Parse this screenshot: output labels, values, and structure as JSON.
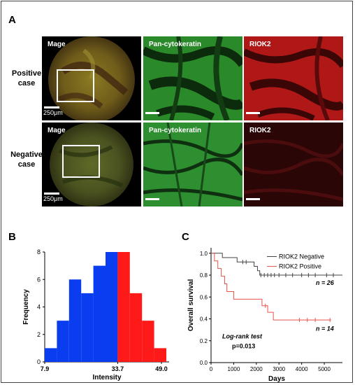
{
  "panel_a": {
    "letter": "A",
    "rows": [
      {
        "label_line1": "Positive",
        "label_line2": "case",
        "tiles": [
          "Mage",
          "Pan-cytokeratin",
          "RIOK2"
        ],
        "scale_text": "250μm"
      },
      {
        "label_line1": "Negative",
        "label_line2": "case",
        "tiles": [
          "Mage",
          "Pan-cytokeratin",
          "RIOK2"
        ],
        "scale_text": "250μm"
      }
    ]
  },
  "panel_b": {
    "letter": "B"
  },
  "panel_c": {
    "letter": "C"
  },
  "colors": {
    "blue": "#0a3cf0",
    "red": "#ff1a1a",
    "green": "#39b54a",
    "km_red": "#e8534a",
    "km_black": "#444444"
  },
  "chart_data": [
    {
      "type": "bar",
      "xlabel": "Intensity",
      "ylabel": "Frequency",
      "x_tick_labels": [
        "7.9",
        "33.7",
        "49.0"
      ],
      "ylim": [
        0,
        8
      ],
      "y_ticks": [
        0,
        2,
        4,
        6,
        8
      ],
      "bins": [
        {
          "group": "negative",
          "value": 1
        },
        {
          "group": "negative",
          "value": 3
        },
        {
          "group": "negative",
          "value": 6
        },
        {
          "group": "negative",
          "value": 5
        },
        {
          "group": "negative",
          "value": 7
        },
        {
          "group": "negative",
          "value": 8
        },
        {
          "group": "positive",
          "value": 8
        },
        {
          "group": "positive",
          "value": 5
        },
        {
          "group": "positive",
          "value": 3
        },
        {
          "group": "positive",
          "value": 1
        }
      ]
    },
    {
      "type": "line",
      "xlabel": "Days",
      "ylabel": "Overall survival",
      "xlim": [
        0,
        5800
      ],
      "ylim": [
        0,
        1.05
      ],
      "x_ticks": [
        0,
        1000,
        2000,
        3000,
        4000,
        5000
      ],
      "y_ticks": [
        "0.0",
        "0.2",
        "0.4",
        "0.6",
        "0.8",
        "1.0"
      ],
      "series": [
        {
          "name": "RIOK2 Negative",
          "n_label": "n = 26",
          "steps": [
            [
              0,
              1.0
            ],
            [
              500,
              0.96
            ],
            [
              1150,
              0.92
            ],
            [
              1900,
              0.88
            ],
            [
              2050,
              0.84
            ],
            [
              2150,
              0.8
            ],
            [
              5800,
              0.8
            ]
          ],
          "censors": [
            1400,
            1550,
            2200,
            2350,
            2500,
            2650,
            2800,
            3000,
            3300,
            3600,
            4000,
            4300,
            4600,
            5100,
            5400
          ]
        },
        {
          "name": "RIOK2 Positive",
          "n_label": "n = 14",
          "steps": [
            [
              0,
              1.0
            ],
            [
              150,
              0.93
            ],
            [
              300,
              0.86
            ],
            [
              450,
              0.79
            ],
            [
              600,
              0.72
            ],
            [
              700,
              0.65
            ],
            [
              1000,
              0.58
            ],
            [
              2250,
              0.52
            ],
            [
              2500,
              0.46
            ],
            [
              2750,
              0.39
            ],
            [
              5300,
              0.39
            ]
          ],
          "censors": [
            2400,
            3900,
            4250,
            4600,
            5250
          ]
        }
      ],
      "annotation_line1": "Log-rank test",
      "annotation_line2": "p=0.013"
    }
  ]
}
